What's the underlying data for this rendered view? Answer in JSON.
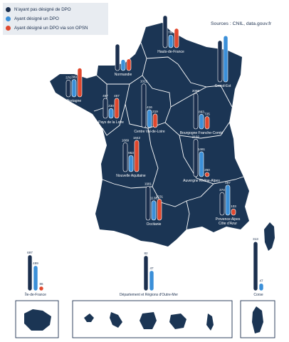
{
  "legend": {
    "items": [
      {
        "label": "N'ayant pas désigné de DPO",
        "color": "#1b2f4e"
      },
      {
        "label": "Ayant désigné un DPO",
        "color": "#3a8fd8"
      },
      {
        "label": "Ayant désigné un DPO via son OPSN",
        "color": "#e0482e"
      }
    ]
  },
  "source": "Sources : CNIL, data.gouv.fr",
  "colors": {
    "map_fill": "#1b3554",
    "map_border": "#ffffff",
    "no_dpo": "#1b2f4e",
    "dpo": "#3a8fd8",
    "opsn": "#e0482e",
    "overseas_frame": "#1b2f4e"
  },
  "chart_data": {
    "type": "bar",
    "categories": [
      "Normandie",
      "Hauts-de-France",
      "Grand-Est",
      "Bretagne",
      "Pays de la Loire",
      "Centre Val-de-Loire",
      "Bourgogne Franche-Comté",
      "Nouvelle Aquitaine",
      "Auvergne Rhône-Alpes",
      "Occitanie",
      "Provence Alpes Côte d'Azur",
      "Île-de-France",
      "Département et Régions d'Outre-Mer",
      "Corse"
    ],
    "series": [
      {
        "name": "N'ayant pas désigné de DPO",
        "values": [
          1546,
          1884,
          2422,
          376,
          467,
          1022,
          2086,
          1689,
          2192,
          1981,
          374,
          697,
          82,
          313
        ]
      },
      {
        "name": "Ayant désigné un DPO",
        "values": [
          643,
          750,
          2701,
          389,
          230,
          416,
          863,
          953,
          1461,
          1138,
          497,
          489,
          47,
          47
        ]
      },
      {
        "name": "Ayant désigné un DPO via son OPSN",
        "values": [
          681,
          1131,
          null,
          643,
          467,
          319,
          725,
          1842,
          250,
          1231,
          103,
          86,
          null,
          null
        ]
      }
    ]
  }
}
